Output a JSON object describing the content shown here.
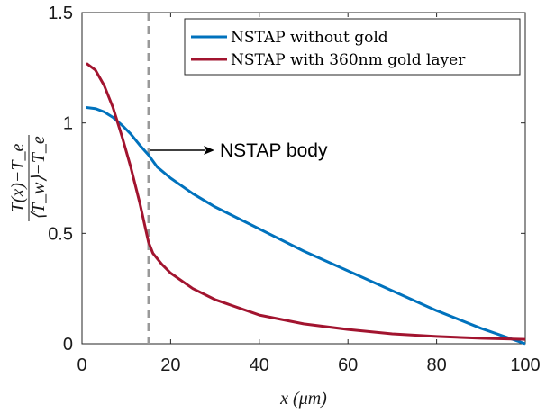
{
  "chart_data": {
    "type": "line",
    "xlabel": "x (μm)",
    "ylabel_numerator": "T(x)−T_e",
    "ylabel_denominator": "⟨T_w⟩−T_e",
    "xlim": [
      0,
      100
    ],
    "ylim": [
      0,
      1.5
    ],
    "x_ticks": [
      0,
      20,
      40,
      60,
      80,
      100
    ],
    "y_ticks": [
      0,
      0.5,
      1,
      1.5
    ],
    "x_tick_labels": [
      "0",
      "20",
      "40",
      "60",
      "80",
      "100"
    ],
    "y_tick_labels": [
      "0",
      "0.5",
      "1",
      "1.5"
    ],
    "legend_position": "top-right",
    "series": [
      {
        "name": "NSTAP without gold",
        "color": "#0072bd",
        "x": [
          1,
          3,
          5,
          7,
          9,
          11,
          13,
          15,
          17,
          20,
          25,
          30,
          40,
          50,
          60,
          70,
          80,
          90,
          100
        ],
        "y": [
          1.07,
          1.065,
          1.05,
          1.025,
          0.99,
          0.95,
          0.9,
          0.855,
          0.8,
          0.75,
          0.68,
          0.62,
          0.52,
          0.42,
          0.33,
          0.24,
          0.15,
          0.07,
          0.0
        ]
      },
      {
        "name": "NSTAP with 360nm gold layer",
        "color": "#a2142f",
        "x": [
          1,
          3,
          5,
          7,
          9,
          11,
          13,
          14,
          15,
          16,
          18,
          20,
          25,
          30,
          40,
          50,
          60,
          70,
          80,
          90,
          100
        ],
        "y": [
          1.27,
          1.24,
          1.17,
          1.07,
          0.94,
          0.8,
          0.64,
          0.55,
          0.46,
          0.41,
          0.36,
          0.32,
          0.25,
          0.2,
          0.13,
          0.09,
          0.065,
          0.045,
          0.033,
          0.025,
          0.02
        ]
      }
    ],
    "annotation": {
      "text": "NSTAP body",
      "x_line": 15
    }
  }
}
